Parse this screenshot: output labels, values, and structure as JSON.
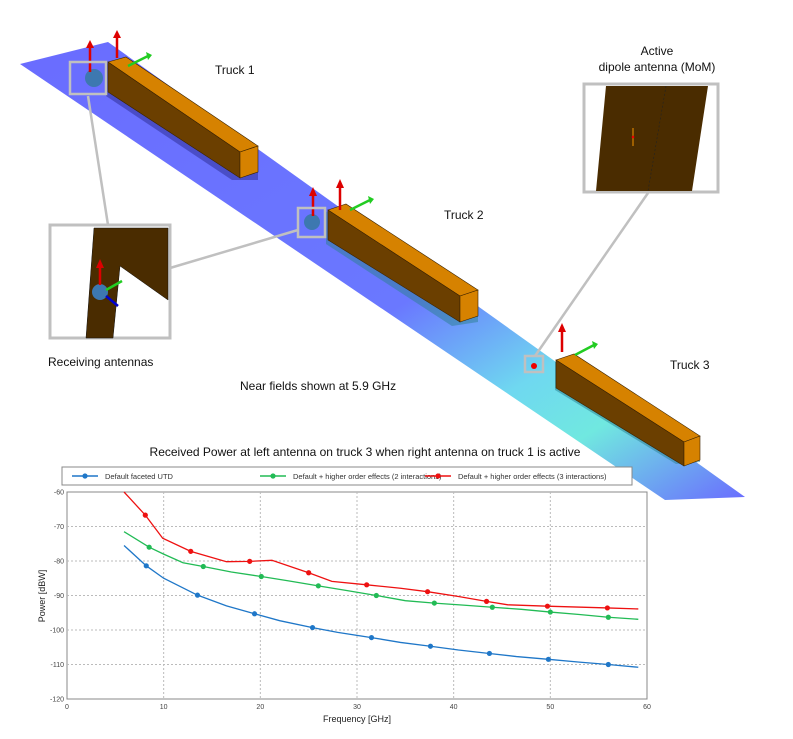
{
  "scene": {
    "truck_labels": [
      "Truck 1",
      "Truck 2",
      "Truck 3"
    ],
    "active_antenna_label_line1": "Active",
    "active_antenna_label_line2": "dipole antenna (MoM)",
    "receiving_label": "Receiving antennas",
    "near_fields_label": "Near fields shown at 5.9 GHz",
    "colors": {
      "ground_plane": "#6a6cff",
      "truck_body": "#d68200",
      "truck_dark": "#4a2c00",
      "callout": "#c0c0c0"
    }
  },
  "chart_data": {
    "type": "line",
    "title": "Received Power at left antenna on truck 3 when right antenna on truck 1 is active",
    "xlabel": "Frequency [GHz]",
    "ylabel": "Power [dBW]",
    "xlim": [
      0,
      60
    ],
    "ylim": [
      -120,
      -60
    ],
    "xticks": [
      0,
      10,
      20,
      30,
      40,
      50,
      60
    ],
    "yticks": [
      -60,
      -70,
      -80,
      -90,
      -100,
      -110,
      -120
    ],
    "grid": true,
    "legend_placement": "top",
    "series": [
      {
        "name": "Default faceted UTD",
        "color": "#1f77c8",
        "points": [
          [
            5.9,
            -75.5
          ],
          [
            8.2,
            -81.4
          ],
          [
            10,
            -85
          ],
          [
            13.5,
            -89.9
          ],
          [
            16.5,
            -93
          ],
          [
            19.4,
            -95.3
          ],
          [
            22,
            -97.3
          ],
          [
            25.4,
            -99.3
          ],
          [
            28,
            -100.7
          ],
          [
            31.5,
            -102.2
          ],
          [
            34.5,
            -103.6
          ],
          [
            37.6,
            -104.7
          ],
          [
            40.5,
            -105.8
          ],
          [
            43.7,
            -106.8
          ],
          [
            46.5,
            -107.7
          ],
          [
            49.8,
            -108.5
          ],
          [
            53,
            -109.3
          ],
          [
            56,
            -110.0
          ],
          [
            59.1,
            -110.8
          ]
        ],
        "markers": [
          [
            8.2,
            -81.4
          ],
          [
            13.5,
            -89.9
          ],
          [
            19.4,
            -95.3
          ],
          [
            25.4,
            -99.3
          ],
          [
            31.5,
            -102.2
          ],
          [
            37.6,
            -104.7
          ],
          [
            43.7,
            -106.8
          ],
          [
            49.8,
            -108.5
          ],
          [
            56,
            -110.0
          ]
        ]
      },
      {
        "name": "Default + higher order effects (2 interactions)",
        "color": "#22bb55",
        "points": [
          [
            5.9,
            -71.5
          ],
          [
            8.5,
            -76
          ],
          [
            10,
            -78
          ],
          [
            12,
            -80.5
          ],
          [
            14.1,
            -81.6
          ],
          [
            17,
            -83.2
          ],
          [
            20.1,
            -84.5
          ],
          [
            23,
            -85.8
          ],
          [
            26,
            -87.2
          ],
          [
            29,
            -88.6
          ],
          [
            32,
            -90
          ],
          [
            35,
            -91.5
          ],
          [
            38,
            -92.2
          ],
          [
            41,
            -92.8
          ],
          [
            44,
            -93.4
          ],
          [
            47,
            -94
          ],
          [
            50,
            -94.8
          ],
          [
            53,
            -95.5
          ],
          [
            56,
            -96.3
          ],
          [
            59.1,
            -96.9
          ]
        ],
        "markers": [
          [
            8.5,
            -76
          ],
          [
            14.1,
            -81.6
          ],
          [
            20.1,
            -84.5
          ],
          [
            26,
            -87.2
          ],
          [
            32,
            -90
          ],
          [
            38,
            -92.2
          ],
          [
            44,
            -93.4
          ],
          [
            50,
            -94.8
          ],
          [
            56,
            -96.3
          ]
        ]
      },
      {
        "name": "Default + higher order effects (3 interactions)",
        "color": "#ee1111",
        "points": [
          [
            5.9,
            -60
          ],
          [
            8.1,
            -66.7
          ],
          [
            9.9,
            -73.4
          ],
          [
            12.8,
            -77.2
          ],
          [
            16.5,
            -80.2
          ],
          [
            18.9,
            -80.1
          ],
          [
            21.2,
            -79.8
          ],
          [
            25,
            -83.4
          ],
          [
            27.4,
            -85.9
          ],
          [
            31,
            -86.9
          ],
          [
            34.5,
            -87.9
          ],
          [
            37.3,
            -88.9
          ],
          [
            40.5,
            -90.3
          ],
          [
            43.4,
            -91.7
          ],
          [
            45.6,
            -92.7
          ],
          [
            49.7,
            -93.1
          ],
          [
            55.9,
            -93.6
          ],
          [
            59.1,
            -93.9
          ]
        ],
        "markers": [
          [
            8.1,
            -66.7
          ],
          [
            12.8,
            -77.2
          ],
          [
            18.9,
            -80.1
          ],
          [
            25,
            -83.4
          ],
          [
            31,
            -86.9
          ],
          [
            37.3,
            -88.9
          ],
          [
            43.4,
            -91.7
          ],
          [
            49.7,
            -93.1
          ],
          [
            55.9,
            -93.6
          ]
        ]
      }
    ]
  }
}
